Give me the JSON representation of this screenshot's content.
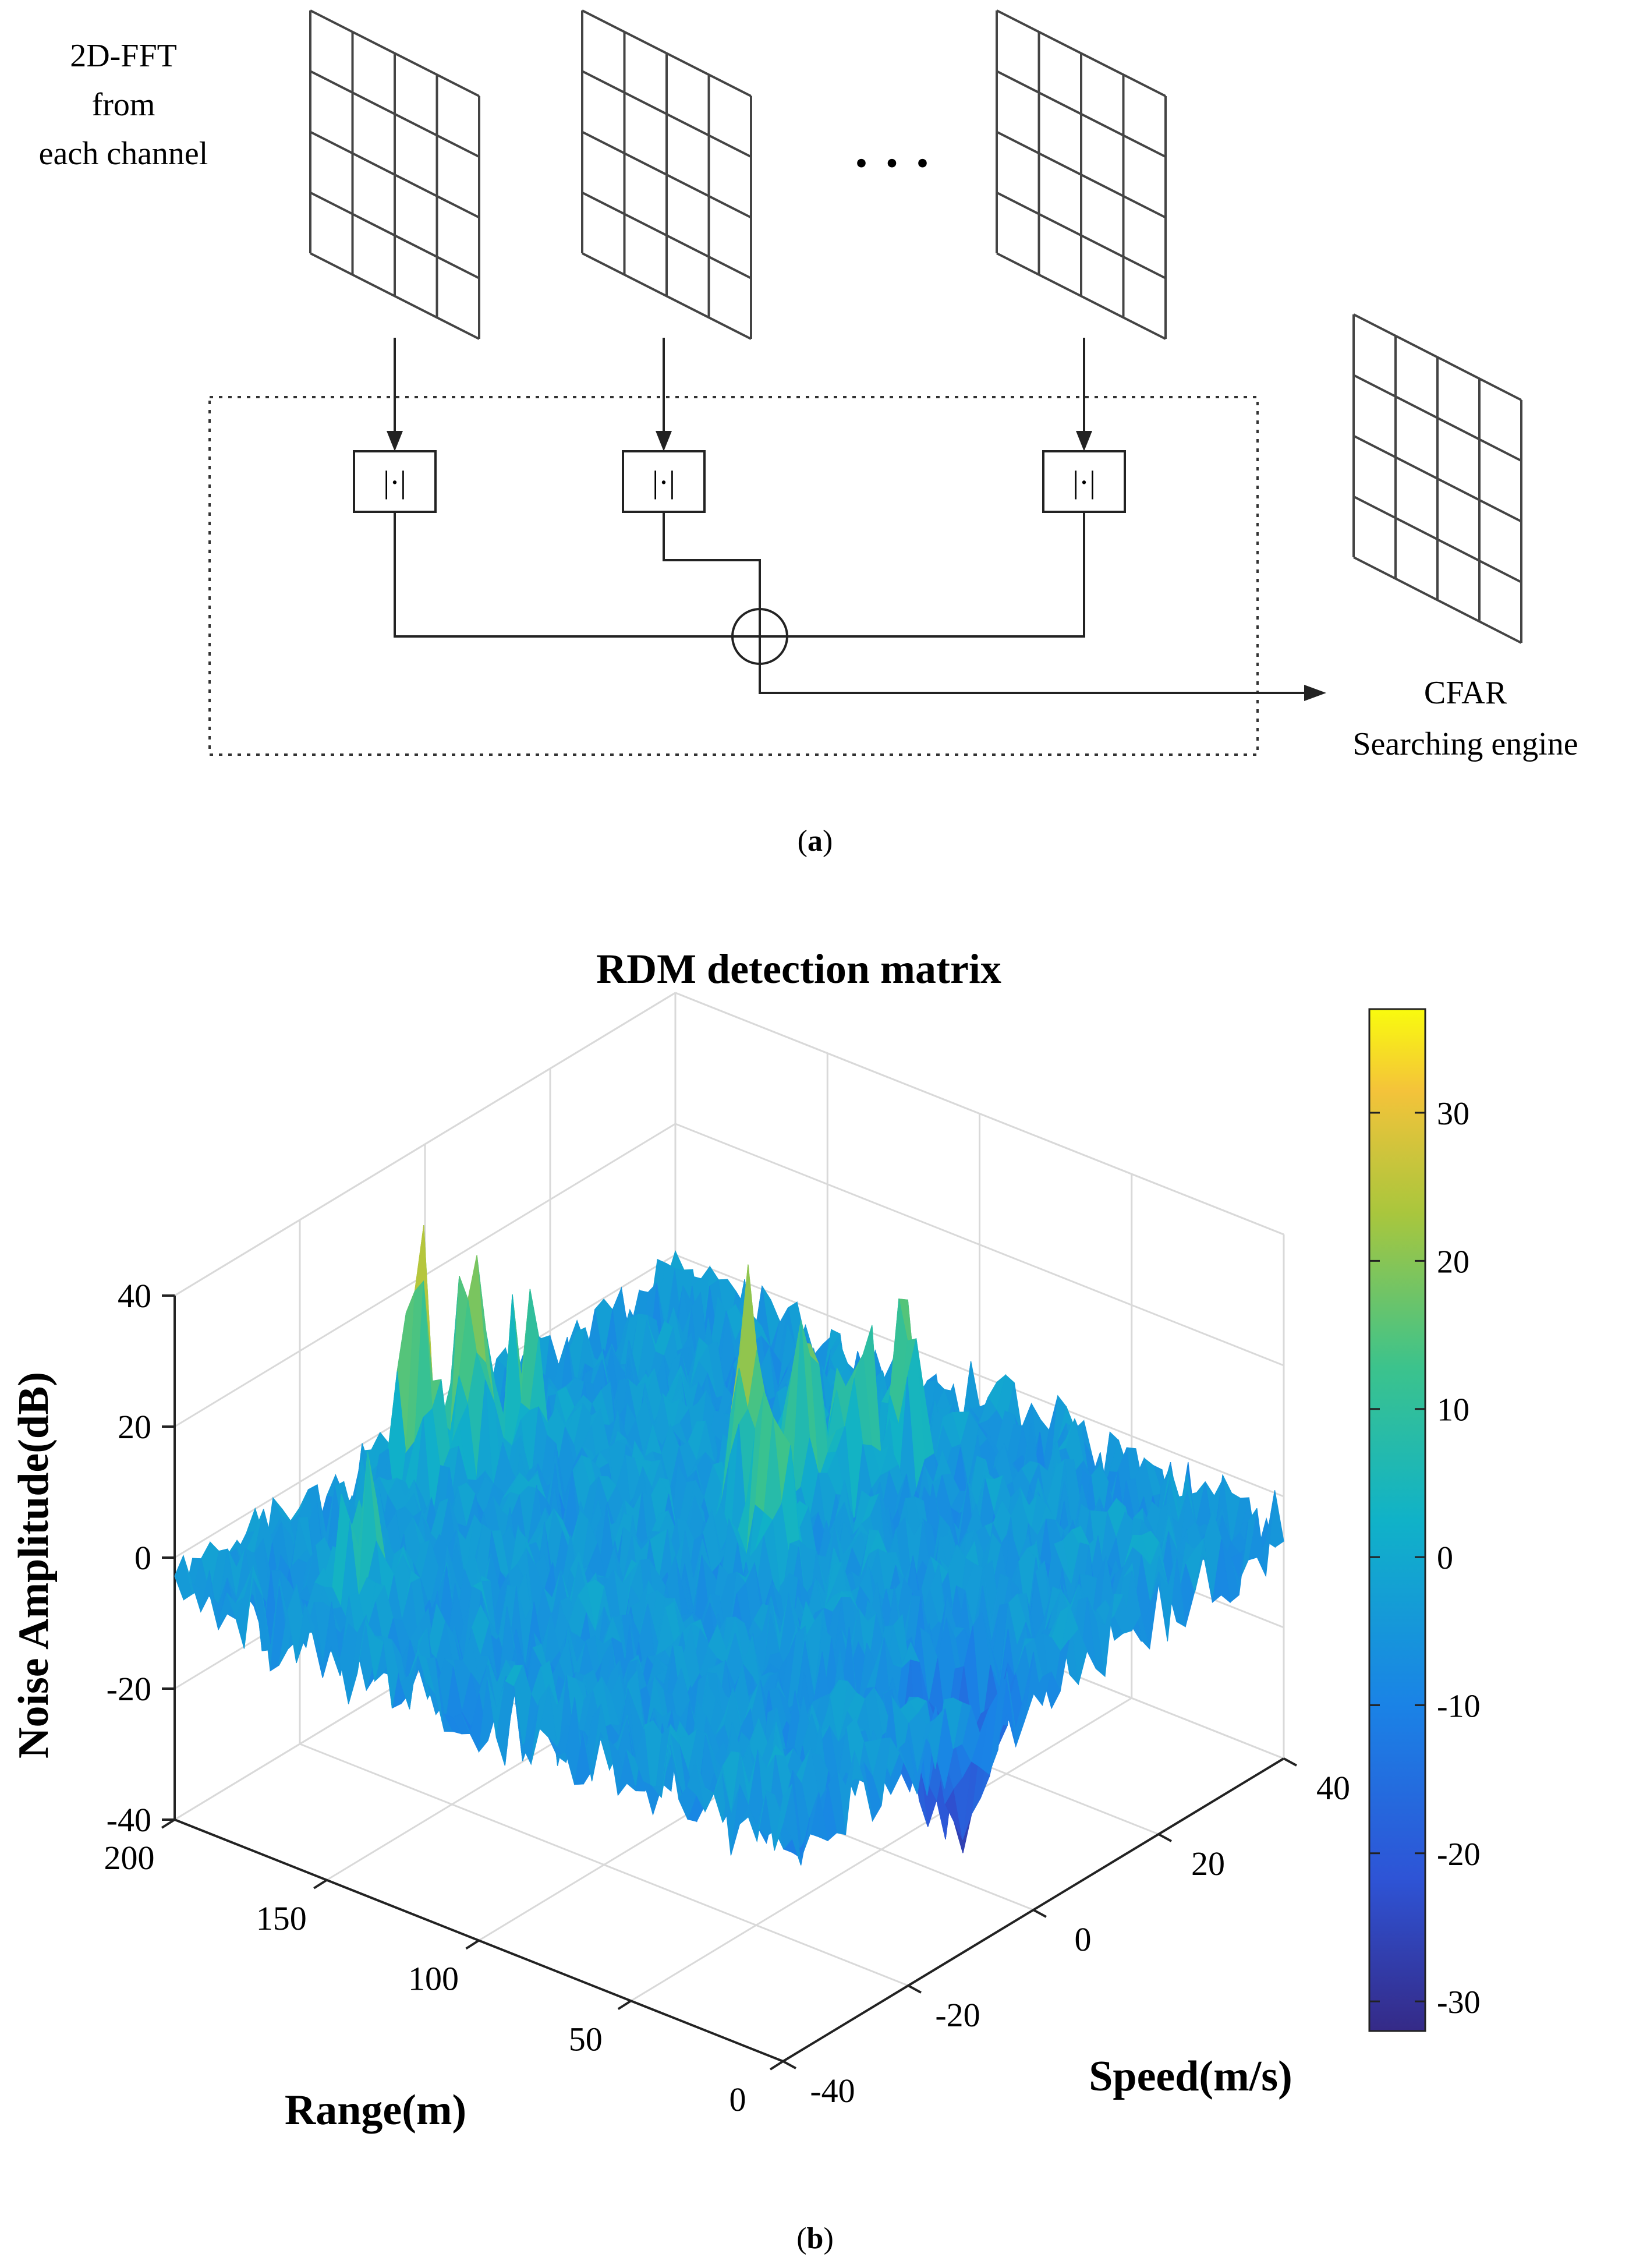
{
  "figure_a": {
    "input_label_lines": [
      "2D-FFT",
      "from",
      "each channel"
    ],
    "ellipsis": "· · ·",
    "abs_box_label": "|·|",
    "output_label_lines": [
      "CFAR",
      "Searching engine"
    ],
    "caption_open": "(",
    "caption_letter": "a",
    "caption_close": ")"
  },
  "figure_b": {
    "caption_open": "(",
    "caption_letter": "b",
    "caption_close": ")"
  },
  "chart_data": {
    "type": "surface",
    "title": "RDM detection matrix",
    "xlabel": "Range(m)",
    "ylabel": "Speed(m/s)",
    "zlabel": "Noise Amplitude(dB)",
    "range_ticks": [
      "200",
      "150",
      "100",
      "50",
      "0"
    ],
    "speed_ticks": [
      "-40",
      "-20",
      "0",
      "20",
      "40"
    ],
    "z_ticks": [
      "40",
      "20",
      "0",
      "-20",
      "-40"
    ],
    "range_lim": [
      0,
      200
    ],
    "speed_lim": [
      -40,
      40
    ],
    "z_lim": [
      -40,
      40
    ],
    "colorbar_ticks": [
      "30",
      "20",
      "10",
      "0",
      "-10",
      "-20",
      "-30"
    ],
    "colorbar_lim": [
      -32,
      37
    ],
    "noise_floor_db": -5,
    "peaks": [
      {
        "range": 185,
        "speed": -8,
        "amplitude": 34
      },
      {
        "range": 180,
        "speed": -2,
        "amplitude": 33
      },
      {
        "range": 175,
        "speed": 4,
        "amplitude": 22
      },
      {
        "range": 160,
        "speed": -30,
        "amplitude": 15
      },
      {
        "range": 110,
        "speed": 8,
        "amplitude": 30
      },
      {
        "range": 105,
        "speed": 14,
        "amplitude": 27
      },
      {
        "range": 100,
        "speed": 20,
        "amplitude": 26
      },
      {
        "range": 95,
        "speed": 26,
        "amplitude": 22
      },
      {
        "range": 90,
        "speed": 2,
        "amplitude": 23
      }
    ],
    "valley": {
      "range": 15,
      "speed": -5,
      "amplitude": -32
    },
    "colors": {
      "low": "#3b2fb0",
      "mid_low": "#2c7be6",
      "mid": "#18b9c4",
      "mid_high": "#7fcb4a",
      "high": "#f9d93a"
    }
  }
}
